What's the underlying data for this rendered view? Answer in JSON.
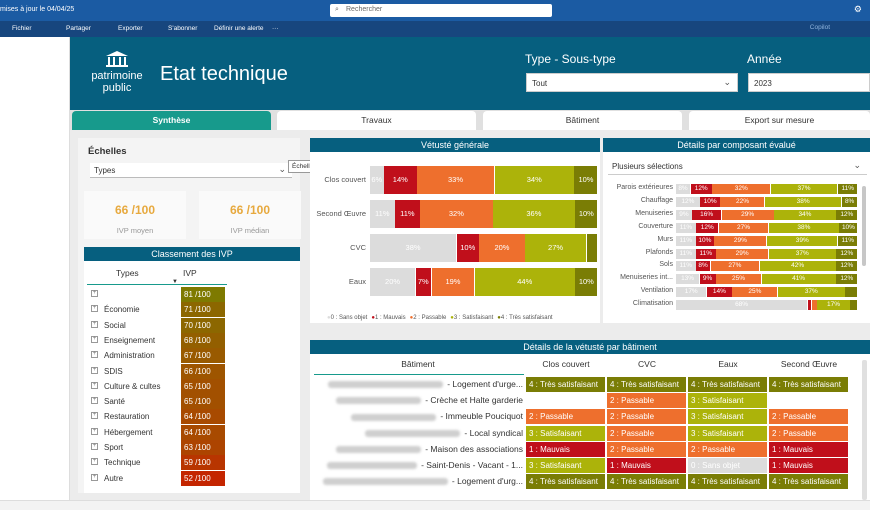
{
  "topbar": {
    "update_text": "mises à jour le 04/04/25",
    "search_placeholder": "Rechercher"
  },
  "cmdbar": {
    "file": "Fichier",
    "share": "Partager",
    "export": "Exporter",
    "subscribe": "S'abonner",
    "alert": "Définir une alerte",
    "more": "···",
    "copilot": "Copilot"
  },
  "header": {
    "logo_line1": "patrimoine",
    "logo_line2": "public",
    "title": "Etat technique",
    "type_label": "Type - Sous-type",
    "type_value": "Tout",
    "year_label": "Année",
    "year_value": "2023"
  },
  "tabs": [
    "Synthèse",
    "Travaux",
    "Bâtiment",
    "Export sur mesure"
  ],
  "echelles": {
    "title": "Échelles",
    "select_value": "Types",
    "tooltip": "Échelles"
  },
  "kpis": [
    {
      "value": "66 /100",
      "label": "IVP moyen"
    },
    {
      "value": "66 /100",
      "label": "IVP médian"
    }
  ],
  "classement": {
    "title": "Classement des IVP",
    "col_types": "Types",
    "col_ivp": "IVP",
    "rows": [
      {
        "name": "",
        "value": "81 /100",
        "color": "#7e7a00"
      },
      {
        "name": "Économie",
        "value": "71 /100",
        "color": "#8c6700"
      },
      {
        "name": "Social",
        "value": "70 /100",
        "color": "#8c6700"
      },
      {
        "name": "Enseignement",
        "value": "68 /100",
        "color": "#935f00"
      },
      {
        "name": "Administration",
        "value": "67 /100",
        "color": "#995a00"
      },
      {
        "name": "SDIS",
        "value": "66 /100",
        "color": "#9e5500"
      },
      {
        "name": "Culture & cultes",
        "value": "65 /100",
        "color": "#a25000"
      },
      {
        "name": "Santé",
        "value": "65 /100",
        "color": "#a25000"
      },
      {
        "name": "Restauration",
        "value": "64 /100",
        "color": "#a84a00"
      },
      {
        "name": "Hébergement",
        "value": "64 /100",
        "color": "#a84a00"
      },
      {
        "name": "Sport",
        "value": "63 /100",
        "color": "#ad4400"
      },
      {
        "name": "Technique",
        "value": "59 /100",
        "color": "#b83500"
      },
      {
        "name": "Autre",
        "value": "52 /100",
        "color": "#c42500"
      }
    ]
  },
  "colors": {
    "sans_objet": "#dcdcdc",
    "mauvais": "#c00f1b",
    "passable": "#ee6f2d",
    "satisfaisant": "#acb30a",
    "tres_satisfaisant": "#7a7d05",
    "header": "#065f7f",
    "tab_active": "#179a8c"
  },
  "vetuste": {
    "title": "Vétusté générale",
    "legend": [
      "0 : Sans objet",
      "1 : Mauvais",
      "2 : Passable",
      "3 : Satisfaisant",
      "4 : Très satisfaisant"
    ],
    "rows": [
      {
        "label": "Clos couvert",
        "segs": [
          [
            "s",
            6,
            "6%"
          ],
          [
            "m",
            14,
            "14%"
          ],
          [
            "p",
            33,
            "33%"
          ],
          [
            "a",
            34,
            "34%"
          ],
          [
            "t",
            10,
            "10%"
          ]
        ]
      },
      {
        "label": "Second Œuvre",
        "segs": [
          [
            "s",
            11,
            "11%"
          ],
          [
            "m",
            11,
            "11%"
          ],
          [
            "p",
            32,
            "32%"
          ],
          [
            "a",
            36,
            "36%"
          ],
          [
            "t",
            10,
            "10%"
          ]
        ]
      },
      {
        "label": "CVC",
        "segs": [
          [
            "s",
            38,
            "38%"
          ],
          [
            "m",
            10,
            "10%"
          ],
          [
            "p",
            20,
            "20%"
          ],
          [
            "a",
            27,
            "27%"
          ],
          [
            "t",
            5,
            ""
          ]
        ]
      },
      {
        "label": "Eaux",
        "segs": [
          [
            "s",
            20,
            "20%"
          ],
          [
            "m",
            7,
            "7%"
          ],
          [
            "p",
            19,
            "19%"
          ],
          [
            "a",
            44,
            "44%"
          ],
          [
            "t",
            10,
            "10%"
          ]
        ]
      }
    ]
  },
  "details": {
    "title": "Détails par composant évalué",
    "select_value": "Plusieurs sélections",
    "rows": [
      {
        "label": "Parois extérieures",
        "segs": [
          [
            "s",
            8,
            "8%"
          ],
          [
            "m",
            12,
            "12%"
          ],
          [
            "p",
            32,
            "32%"
          ],
          [
            "a",
            37,
            "37%"
          ],
          [
            "t",
            11,
            "11%"
          ]
        ]
      },
      {
        "label": "Chauffage",
        "segs": [
          [
            "s",
            12,
            "12%"
          ],
          [
            "m",
            10,
            "10%"
          ],
          [
            "p",
            22,
            "22%"
          ],
          [
            "a",
            38,
            "38%"
          ],
          [
            "t",
            8,
            "8%"
          ]
        ]
      },
      {
        "label": "Menuiseries",
        "segs": [
          [
            "s",
            9,
            "9%"
          ],
          [
            "m",
            16,
            "16%"
          ],
          [
            "p",
            29,
            "29%"
          ],
          [
            "a",
            34,
            "34%"
          ],
          [
            "t",
            12,
            "12%"
          ]
        ]
      },
      {
        "label": "Couverture",
        "segs": [
          [
            "s",
            11,
            "11%"
          ],
          [
            "m",
            12,
            "12%"
          ],
          [
            "p",
            27,
            "27%"
          ],
          [
            "a",
            38,
            "38%"
          ],
          [
            "t",
            10,
            "10%"
          ]
        ]
      },
      {
        "label": "Murs",
        "segs": [
          [
            "s",
            11,
            "11%"
          ],
          [
            "m",
            10,
            "10%"
          ],
          [
            "p",
            29,
            "29%"
          ],
          [
            "a",
            39,
            "39%"
          ],
          [
            "t",
            11,
            "11%"
          ]
        ]
      },
      {
        "label": "Plafonds",
        "segs": [
          [
            "s",
            11,
            "11%"
          ],
          [
            "m",
            11,
            "11%"
          ],
          [
            "p",
            29,
            "29%"
          ],
          [
            "a",
            37,
            "37%"
          ],
          [
            "t",
            12,
            "12%"
          ]
        ]
      },
      {
        "label": "Sols",
        "segs": [
          [
            "s",
            11,
            "11%"
          ],
          [
            "m",
            8,
            "8%"
          ],
          [
            "p",
            27,
            "27%"
          ],
          [
            "a",
            42,
            "42%"
          ],
          [
            "t",
            12,
            "12%"
          ]
        ]
      },
      {
        "label": "Menuiseries int...",
        "segs": [
          [
            "s",
            13,
            "13%"
          ],
          [
            "m",
            9,
            "9%"
          ],
          [
            "p",
            25,
            "25%"
          ],
          [
            "a",
            41,
            "41%"
          ],
          [
            "t",
            12,
            "12%"
          ]
        ]
      },
      {
        "label": "Ventilation",
        "segs": [
          [
            "s",
            17,
            "17%"
          ],
          [
            "m",
            14,
            "14%"
          ],
          [
            "p",
            25,
            "25%"
          ],
          [
            "a",
            37,
            "37%"
          ],
          [
            "t",
            7,
            ""
          ]
        ]
      },
      {
        "label": "Climatisation",
        "segs": [
          [
            "s",
            68,
            "68%"
          ],
          [
            "m",
            2,
            ""
          ],
          [
            "p",
            3,
            ""
          ],
          [
            "a",
            17,
            "17%"
          ],
          [
            "t",
            4,
            ""
          ]
        ]
      }
    ]
  },
  "batiments": {
    "title": "Détails de la vétusté par bâtiment",
    "columns": [
      "Bâtiment",
      "Clos couvert",
      "CVC",
      "Eaux",
      "Second Œuvre"
    ],
    "rows": [
      {
        "name": "- Logement d'urge...",
        "blur": 115,
        "cells": [
          [
            "t",
            "4 : Très satisfaisant"
          ],
          [
            "t",
            "4 : Très satisfaisant"
          ],
          [
            "t",
            "4 : Très satisfaisant"
          ],
          [
            "t",
            "4 : Très satisfaisant"
          ]
        ]
      },
      {
        "name": "- Crèche et Halte garderie",
        "blur": 85,
        "cells": [
          [
            "",
            ""
          ],
          [
            "p",
            "2 : Passable"
          ],
          [
            "a",
            "3 : Satisfaisant"
          ],
          [
            "",
            ""
          ]
        ]
      },
      {
        "name": "- Immeuble Pouciquot",
        "blur": 85,
        "cells": [
          [
            "p",
            "2 : Passable"
          ],
          [
            "p",
            "2 : Passable"
          ],
          [
            "a",
            "3 : Satisfaisant"
          ],
          [
            "p",
            "2 : Passable"
          ]
        ]
      },
      {
        "name": "- Local syndical",
        "blur": 95,
        "cells": [
          [
            "a",
            "3 : Satisfaisant"
          ],
          [
            "p",
            "2 : Passable"
          ],
          [
            "a",
            "3 : Satisfaisant"
          ],
          [
            "p",
            "2 : Passable"
          ]
        ]
      },
      {
        "name": "- Maison des associations",
        "blur": 85,
        "cells": [
          [
            "m",
            "1 : Mauvais"
          ],
          [
            "p",
            "2 : Passable"
          ],
          [
            "p",
            "2 : Passable"
          ],
          [
            "m",
            "1 : Mauvais"
          ]
        ]
      },
      {
        "name": "- Saint-Denis - Vacant - 1...",
        "blur": 90,
        "cells": [
          [
            "a",
            "3 : Satisfaisant"
          ],
          [
            "m",
            "1 : Mauvais"
          ],
          [
            "s",
            "0 : Sans objet"
          ],
          [
            "m",
            "1 : Mauvais"
          ]
        ]
      },
      {
        "name": "- Logement d'urg...",
        "blur": 125,
        "cells": [
          [
            "t",
            "4 : Très satisfaisant"
          ],
          [
            "t",
            "4 : Très satisfaisant"
          ],
          [
            "t",
            "4 : Très satisfaisant"
          ],
          [
            "t",
            "4 : Très satisfaisant"
          ]
        ]
      }
    ]
  }
}
